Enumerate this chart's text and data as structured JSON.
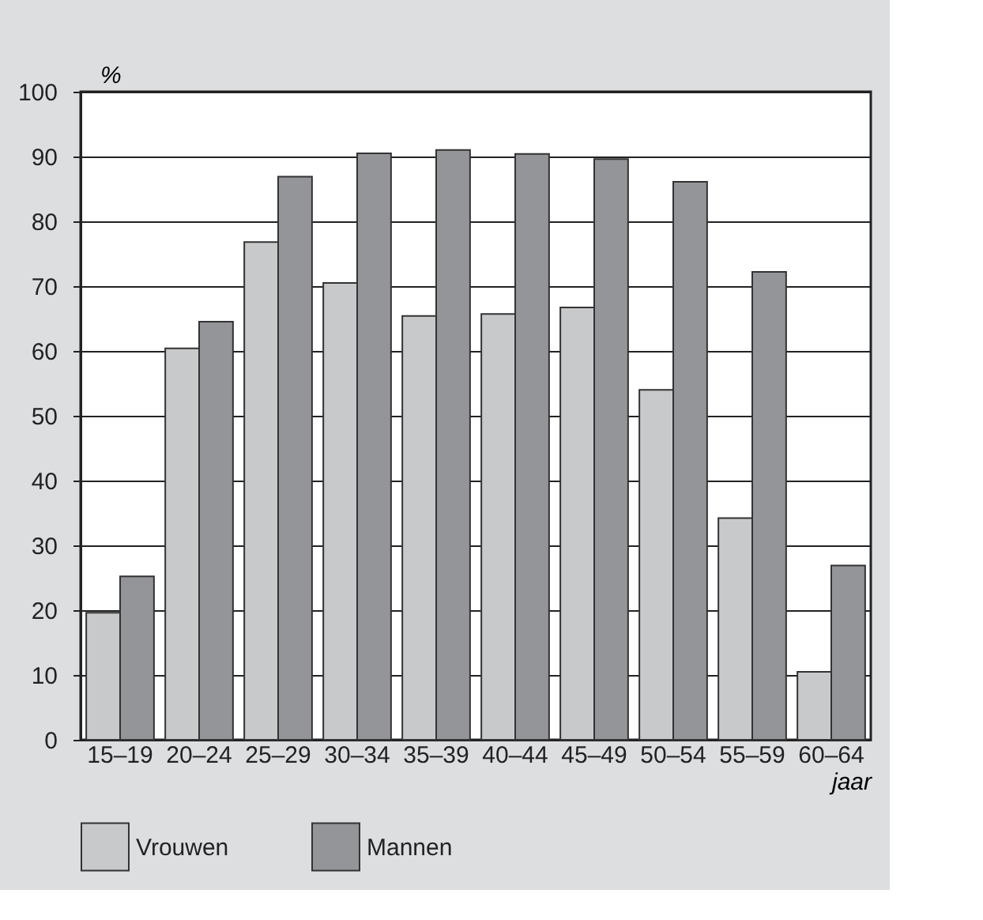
{
  "chart_data": {
    "type": "bar",
    "xlabel": "jaar",
    "ylabel": "%",
    "categories": [
      "15–19",
      "20–24",
      "25–29",
      "30–34",
      "35–39",
      "40–44",
      "45–49",
      "50–54",
      "55–59",
      "60–64"
    ],
    "series": [
      {
        "name": "Vrouwen",
        "color": "#c8c9cb",
        "values": [
          19.6,
          60.4,
          76.8,
          70.5,
          65.4,
          65.7,
          66.7,
          54.0,
          34.2,
          10.5
        ]
      },
      {
        "name": "Mannen",
        "color": "#949598",
        "values": [
          25.2,
          64.5,
          86.9,
          90.5,
          91.0,
          90.4,
          89.6,
          86.1,
          72.2,
          26.9
        ]
      }
    ],
    "ylim": [
      0,
      100
    ],
    "yticks": [
      0,
      10,
      20,
      30,
      40,
      50,
      60,
      70,
      80,
      90,
      100
    ],
    "grid": "y",
    "legend": "bottom left"
  }
}
